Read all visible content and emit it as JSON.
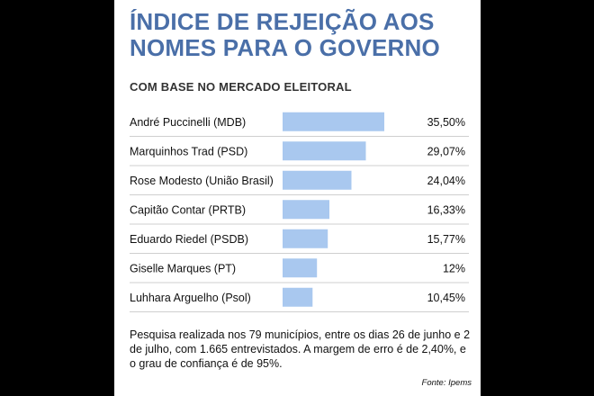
{
  "chart_data": {
    "type": "bar",
    "orientation": "horizontal",
    "title": "ÍNDICE DE REJEIÇÃO AOS NOMES PARA O GOVERNO",
    "subtitle": "COM BASE NO MERCADO ELEITORAL",
    "categories": [
      "André Puccinelli (MDB)",
      "Marquinhos Trad (PSD)",
      "Rose Modesto (União Brasil)",
      "Capitão Contar (PRTB)",
      "Eduardo Riedel (PSDB)",
      "Giselle Marques (PT)",
      "Luhhara Arguelho (Psol)"
    ],
    "values": [
      35.5,
      29.07,
      24.04,
      16.33,
      15.77,
      12,
      10.45
    ],
    "value_labels": [
      "35,50%",
      "29,07%",
      "24,04%",
      "16,33%",
      "15,77%",
      "12%",
      "10,45%"
    ],
    "bar_color": "#a9c8ef",
    "xlim": [
      0,
      40
    ],
    "grid": false
  },
  "footnote": "Pesquisa realizada nos 79 municípios, entre os dias 26 de junho e 2 de julho, com 1.665 entrevistados. A margem de erro é de 2,40%, e o grau de confiança é de 95%.",
  "source": "Fonte: Ipems"
}
